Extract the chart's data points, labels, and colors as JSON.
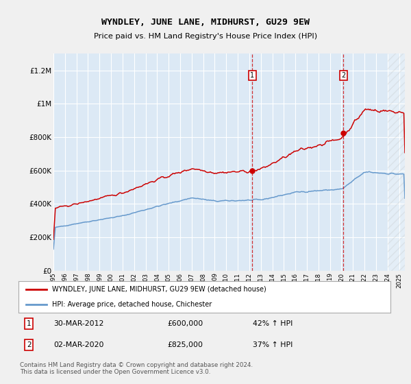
{
  "title": "WYNDLEY, JUNE LANE, MIDHURST, GU29 9EW",
  "subtitle": "Price paid vs. HM Land Registry's House Price Index (HPI)",
  "ylabel_ticks": [
    "£0",
    "£200K",
    "£400K",
    "£600K",
    "£800K",
    "£1M",
    "£1.2M"
  ],
  "ytick_values": [
    0,
    200000,
    400000,
    600000,
    800000,
    1000000,
    1200000
  ],
  "ylim": [
    0,
    1300000
  ],
  "xlim_start": 1995.0,
  "xlim_end": 2025.5,
  "background_color": "#dce9f5",
  "plot_bg_color": "#dce9f5",
  "grid_color": "#ffffff",
  "house_color": "#cc0000",
  "hpi_color": "#6699cc",
  "marker1_date": 2012.25,
  "marker1_price": 600000,
  "marker2_date": 2020.17,
  "marker2_price": 825000,
  "legend_house": "WYNDLEY, JUNE LANE, MIDHURST, GU29 9EW (detached house)",
  "legend_hpi": "HPI: Average price, detached house, Chichester",
  "annotation1_label": "1",
  "annotation1_date": "30-MAR-2012",
  "annotation1_price": "£600,000",
  "annotation1_hpi": "42% ↑ HPI",
  "annotation2_label": "2",
  "annotation2_date": "02-MAR-2020",
  "annotation2_price": "£825,000",
  "annotation2_hpi": "37% ↑ HPI",
  "footer": "Contains HM Land Registry data © Crown copyright and database right 2024.\nThis data is licensed under the Open Government Licence v3.0.",
  "fig_bg": "#f0f0f0"
}
